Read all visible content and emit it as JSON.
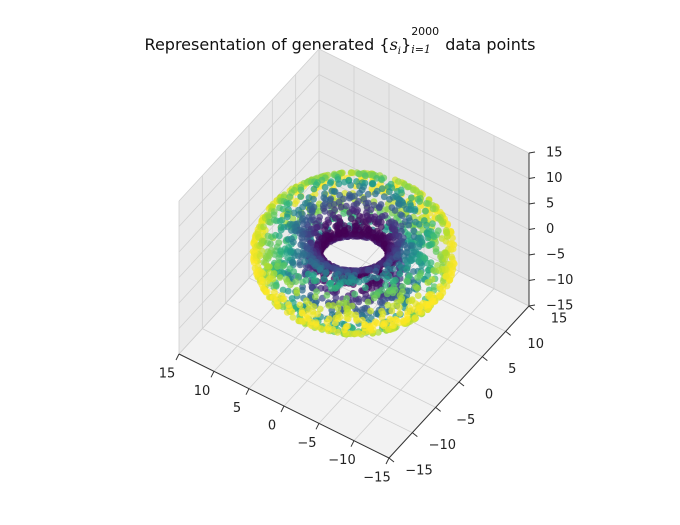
{
  "chart_data": {
    "type": "scatter",
    "projection": "3d",
    "title": {
      "prefix": "Representation of generated ",
      "set_open": "{",
      "set_symbol": "s",
      "set_subscript": "i",
      "set_close": "}",
      "sup": "2000",
      "sub": "i=1",
      "suffix": "data points"
    },
    "n_points": 2000,
    "shape": "torus",
    "torus": {
      "major_radius": 8,
      "minor_radius": 4
    },
    "colormap": "viridis",
    "color_by": "distance from center",
    "xlim": [
      -15,
      15
    ],
    "ylim": [
      -15,
      15
    ],
    "zlim": [
      -15,
      15
    ],
    "x_ticks": [
      "−15",
      "−10",
      "−5",
      "0",
      "5",
      "10",
      "15"
    ],
    "y_ticks": [
      "−15",
      "−10",
      "−5",
      "0",
      "5",
      "10",
      "15"
    ],
    "z_ticks": [
      "−15",
      "−10",
      "−5",
      "0",
      "5",
      "10",
      "15"
    ],
    "xlabel": "",
    "ylabel": "",
    "zlabel": "",
    "grid": true,
    "pane_color": "#f2f2f2"
  }
}
